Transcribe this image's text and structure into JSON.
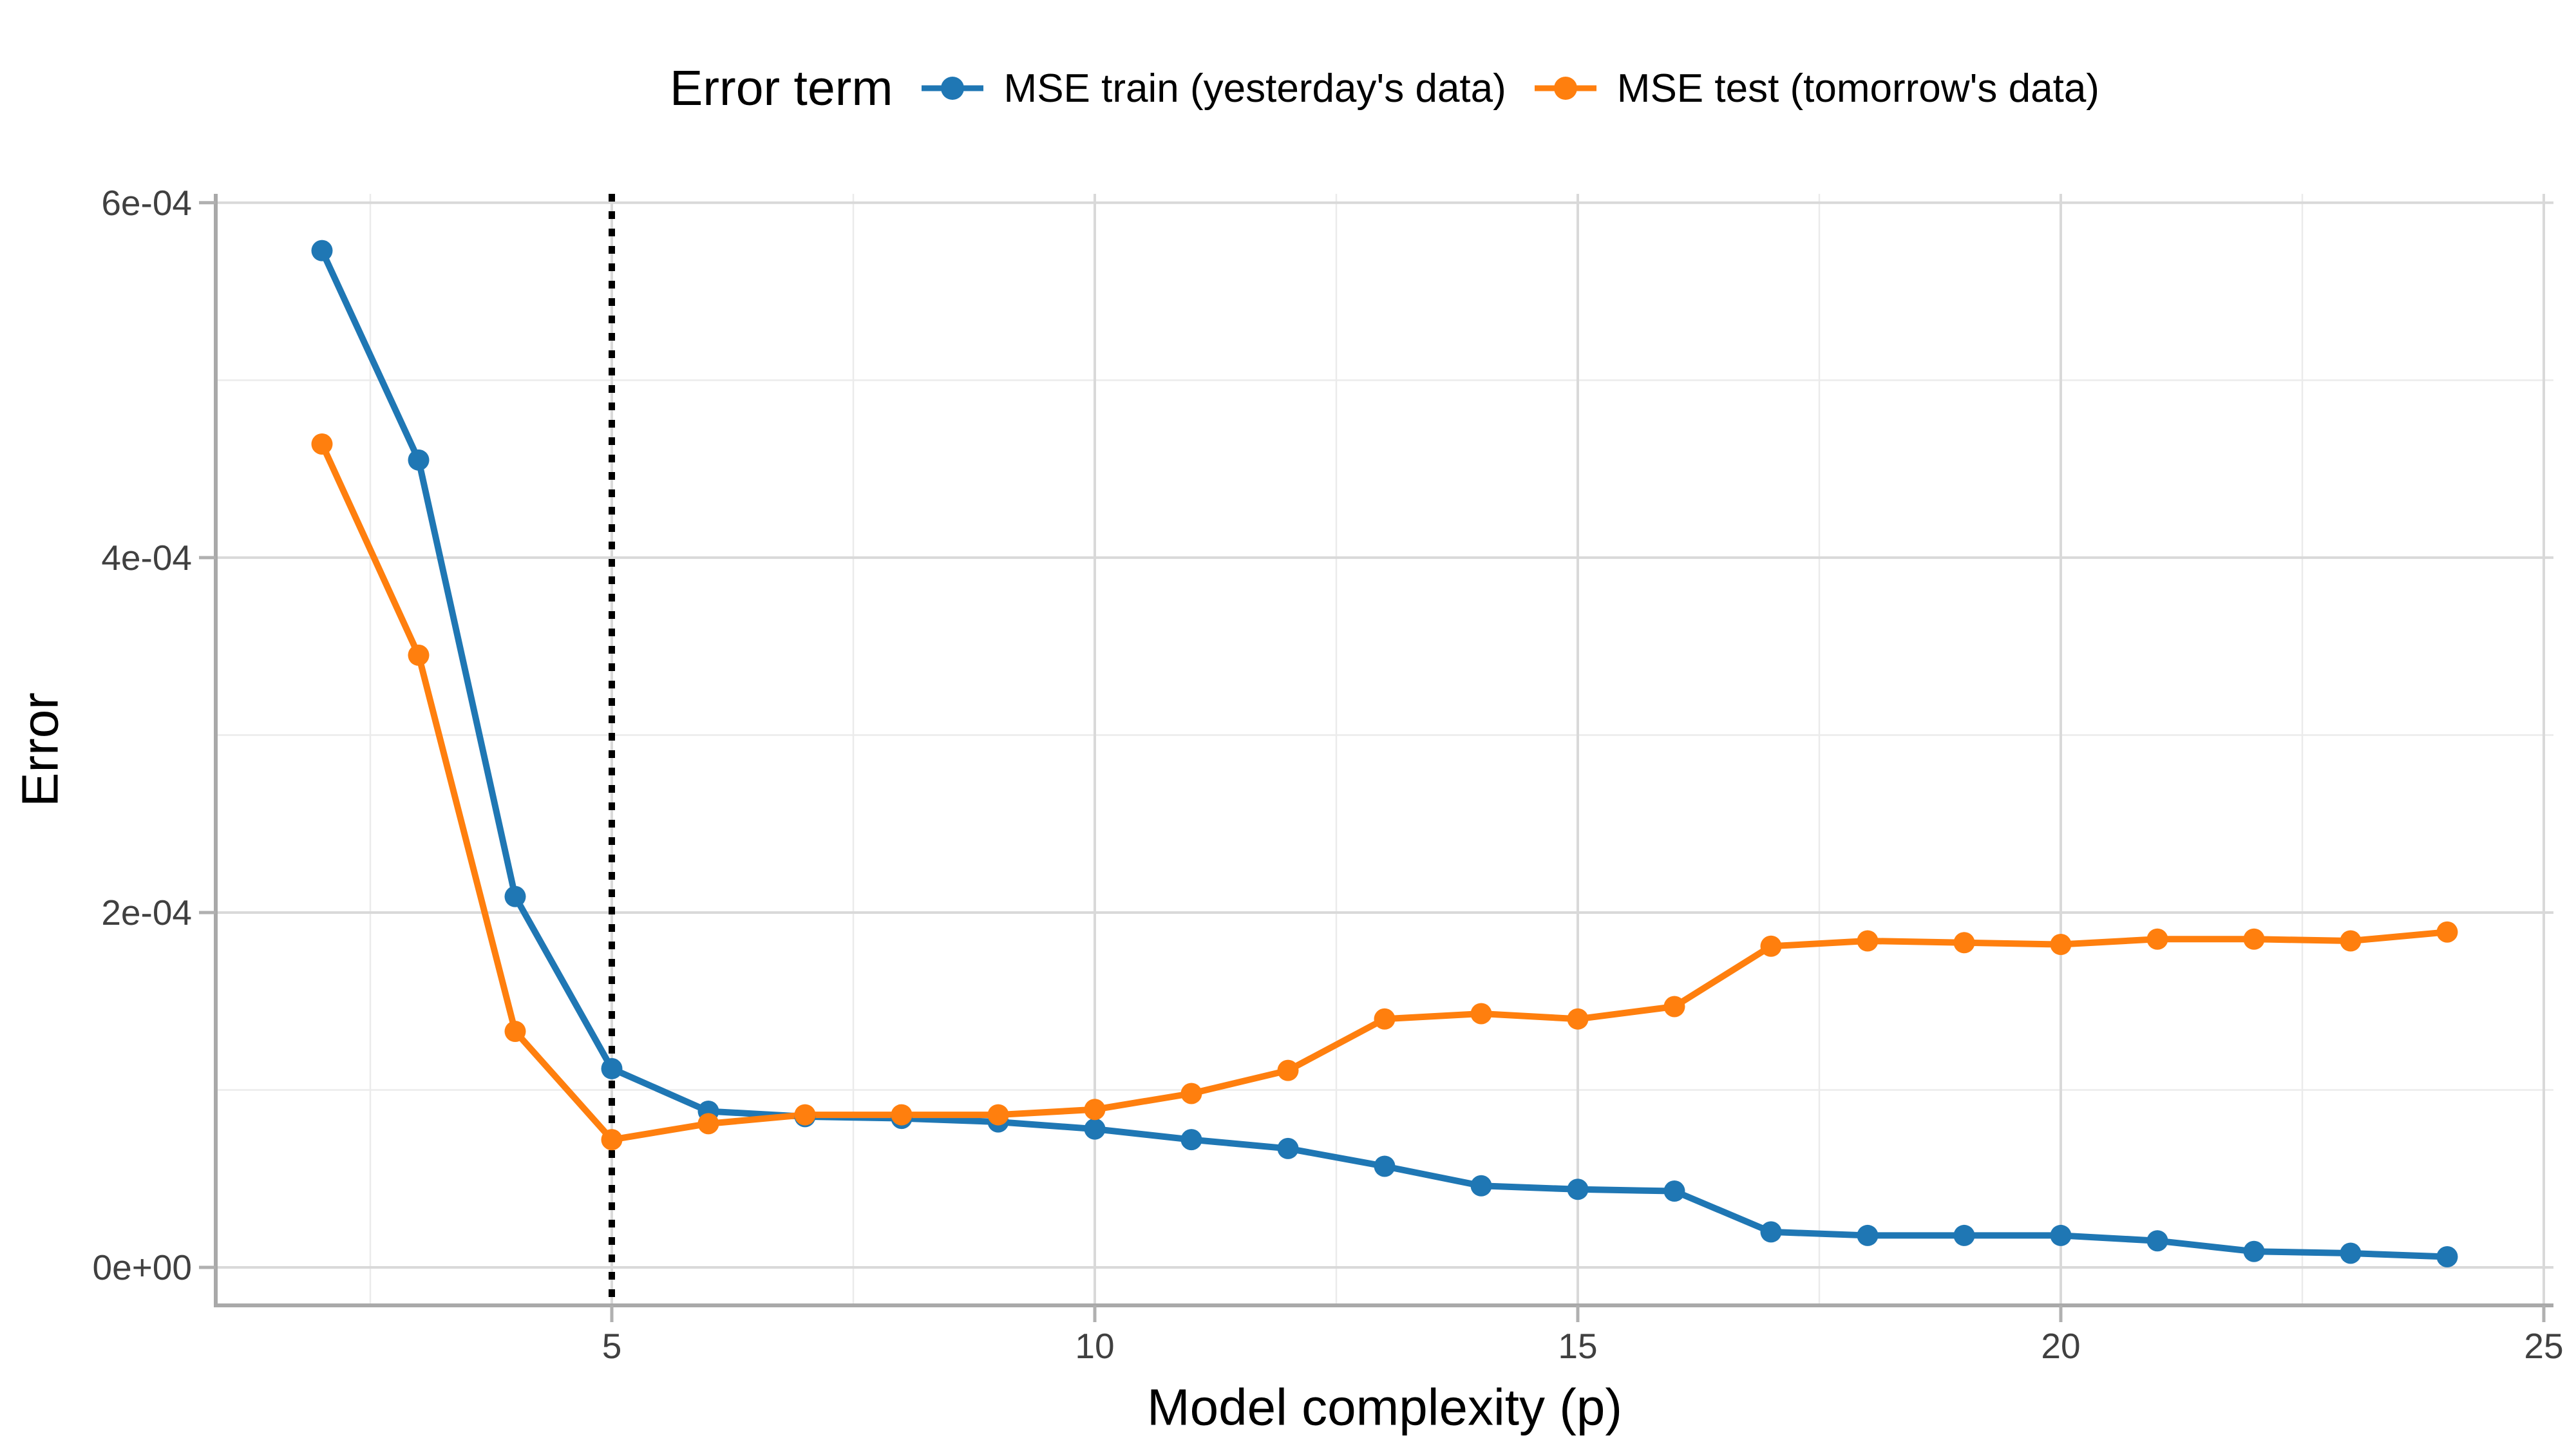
{
  "chart_data": {
    "type": "line",
    "title": "",
    "legend_title": "Error term",
    "legend_position": "top",
    "xlabel": "Model complexity (p)",
    "ylabel": "Error",
    "grid": true,
    "x": [
      2,
      3,
      4,
      5,
      6,
      7,
      8,
      9,
      10,
      11,
      12,
      13,
      14,
      15,
      16,
      17,
      18,
      19,
      20,
      21,
      22,
      23,
      24
    ],
    "series": [
      {
        "name": "MSE train (yesterday's data)",
        "color": "#1f77b4",
        "values": [
          0.000573,
          0.000455,
          0.000209,
          0.000112,
          8.8e-05,
          8.5e-05,
          8.4e-05,
          8.2e-05,
          7.8e-05,
          7.2e-05,
          6.7e-05,
          5.7e-05,
          4.6e-05,
          4.4e-05,
          4.3e-05,
          2e-05,
          1.8e-05,
          1.8e-05,
          1.8e-05,
          1.5e-05,
          9e-06,
          8e-06,
          6e-06
        ]
      },
      {
        "name": "MSE test (tomorrow's data)",
        "color": "#ff7f0e",
        "values": [
          0.000464,
          0.000345,
          0.000133,
          7.2e-05,
          8.1e-05,
          8.6e-05,
          8.6e-05,
          8.6e-05,
          8.9e-05,
          9.8e-05,
          0.000111,
          0.00014,
          0.000143,
          0.00014,
          0.000147,
          0.000181,
          0.000184,
          0.000183,
          0.000182,
          0.000185,
          0.000185,
          0.000184,
          0.000189
        ]
      }
    ],
    "x_ticks": {
      "major": [
        5,
        10,
        15,
        20,
        25
      ],
      "minor": [
        2.5,
        7.5,
        12.5,
        17.5,
        22.5
      ],
      "labels": [
        "5",
        "10",
        "15",
        "20",
        "25"
      ]
    },
    "y_ticks": {
      "major": [
        0,
        0.0002,
        0.0004,
        0.0006
      ],
      "minor": [
        0.0001,
        0.0003,
        0.0005
      ],
      "labels": [
        "0e+00",
        "2e-04",
        "4e-04",
        "6e-04"
      ]
    },
    "xlim": [
      0.9,
      25.1
    ],
    "ylim": [
      -2.14e-05,
      0.000605
    ],
    "vline": {
      "x": 5,
      "style": "dotted",
      "color": "#000000"
    },
    "colors": {
      "background": "#ffffff",
      "grid_major": "#d9d9d9",
      "grid_minor": "#ebebeb",
      "axis_line": "#a9a9a9",
      "tick_mark": "#b0b0b0",
      "tick_text": "#404040",
      "title_text": "#000000"
    }
  }
}
